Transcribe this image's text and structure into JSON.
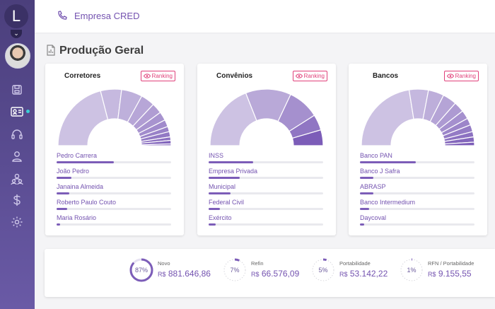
{
  "sidebar": {
    "logo_letter": "L",
    "nav": [
      {
        "icon": "save-icon",
        "active": false
      },
      {
        "icon": "id-card-icon",
        "active": true
      },
      {
        "icon": "headset-icon",
        "active": false
      },
      {
        "icon": "user-icon",
        "active": false
      },
      {
        "icon": "users-group-icon",
        "active": false
      },
      {
        "icon": "dollar-icon",
        "active": false
      },
      {
        "icon": "gear-icon",
        "active": false
      }
    ]
  },
  "header": {
    "company": "Empresa CRED",
    "icon": "phone-icon"
  },
  "page": {
    "title": "Produção Geral"
  },
  "ranking_label": "Ranking",
  "cards": [
    {
      "title": "Corretores",
      "segments": [
        0.42,
        0.12,
        0.12,
        0.08,
        0.06,
        0.05,
        0.04,
        0.03,
        0.03,
        0.02,
        0.02,
        0.01
      ],
      "items": [
        {
          "label": "Pedro Carrera",
          "fraction": 0.5
        },
        {
          "label": "João Pedro",
          "fraction": 0.13
        },
        {
          "label": "Janaina Almeida",
          "fraction": 0.11
        },
        {
          "label": "Roberto Paulo Couto",
          "fraction": 0.09
        },
        {
          "label": "Maria Rosário",
          "fraction": 0.03
        }
      ]
    },
    {
      "title": "Convênios",
      "segments": [
        0.38,
        0.26,
        0.18,
        0.09,
        0.09
      ],
      "items": [
        {
          "label": "INSS",
          "fraction": 0.39
        },
        {
          "label": "Empresa Privada",
          "fraction": 0.27
        },
        {
          "label": "Municipal",
          "fraction": 0.19
        },
        {
          "label": "Federal Civil",
          "fraction": 0.1
        },
        {
          "label": "Exército",
          "fraction": 0.06
        }
      ]
    },
    {
      "title": "Bancos",
      "segments": [
        0.45,
        0.11,
        0.09,
        0.08,
        0.06,
        0.05,
        0.04,
        0.04,
        0.03,
        0.03,
        0.02
      ],
      "items": [
        {
          "label": "Banco PAN",
          "fraction": 0.49
        },
        {
          "label": "Banco J Safra",
          "fraction": 0.12
        },
        {
          "label": "ABRASP",
          "fraction": 0.12
        },
        {
          "label": "Banco Intermedium",
          "fraction": 0.08
        },
        {
          "label": "Daycoval",
          "fraction": 0.04
        }
      ]
    }
  ],
  "summary": [
    {
      "name": "Novo",
      "percent": "87%",
      "fraction": 0.87,
      "currency": "R$",
      "amount": "881.646,86"
    },
    {
      "name": "Refin",
      "percent": "7%",
      "fraction": 0.07,
      "currency": "R$",
      "amount": "66.576,09"
    },
    {
      "name": "Portabilidade",
      "percent": "5%",
      "fraction": 0.05,
      "currency": "R$",
      "amount": "53.142,22"
    },
    {
      "name": "RFN / Portabilidade",
      "percent": "1%",
      "fraction": 0.01,
      "currency": "R$",
      "amount": "9.155,55"
    }
  ],
  "colors": {
    "accent": "#7453b0",
    "sidebar": "#5b4d93",
    "ranking": "#e0407a",
    "donut_light": "#cdc2e3",
    "donut_dark": "#7c5db8"
  }
}
